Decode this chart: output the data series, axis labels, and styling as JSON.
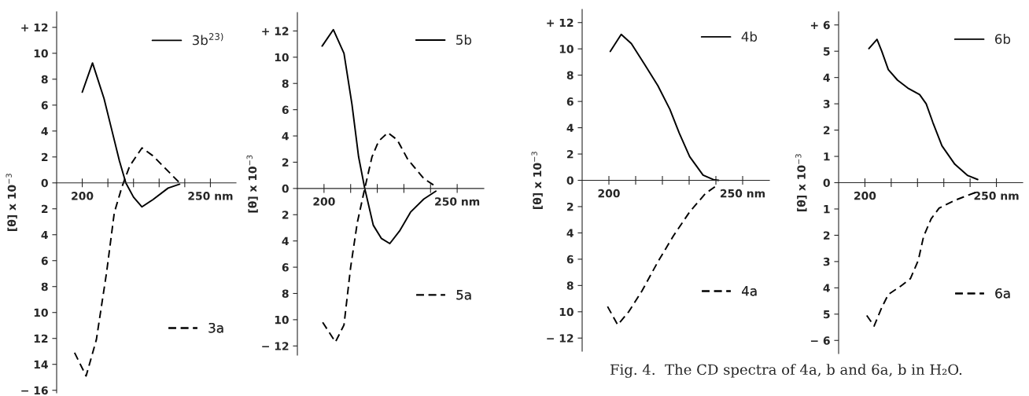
{
  "chart_data": [
    {
      "type": "line",
      "ylabel": "[θ] x 10$^{−3}$",
      "legend": "right",
      "grid": false,
      "xlim": [
        190,
        260
      ],
      "xticks": [
        200,
        {
          "value": 210,
          "label": null
        },
        {
          "value": 220,
          "label": null
        },
        {
          "value": 230,
          "label": null
        },
        {
          "value": 240,
          "label": null
        },
        {
          "value": 250,
          "label": "250 nm"
        }
      ],
      "ylim": [
        -16.2,
        13.2
      ],
      "yticks": [
        {
          "value": 12,
          "label": "+ 12"
        },
        10,
        8,
        6,
        4,
        2,
        0,
        {
          "value": -2,
          "label": "2"
        },
        {
          "value": -4,
          "label": "4"
        },
        {
          "value": -6,
          "label": "6"
        },
        {
          "value": -8,
          "label": "8"
        },
        {
          "value": -10,
          "label": "10"
        },
        {
          "value": -12,
          "label": "12"
        },
        {
          "value": -14,
          "label": "14"
        },
        {
          "value": -16,
          "label": "− 16"
        }
      ],
      "series": [
        {
          "name": "3b$^{23)}$",
          "color": "#000000",
          "line_style": "solid",
          "x": [
            200,
            204,
            208.5,
            211.5,
            214.5,
            217,
            220,
            223.3,
            227.5,
            233.5,
            238
          ],
          "values": [
            7.0,
            9.25,
            6.5,
            4.1,
            1.7,
            0,
            -1.1,
            -1.85,
            -1.3,
            -0.4,
            -0.1
          ]
        },
        {
          "name": "3a",
          "color": "#000000",
          "line_style": "dashed",
          "x": [
            197,
            201.5,
            205.5,
            209.5,
            212.5,
            215.5,
            218.5,
            223.3,
            227.5,
            233.5,
            238
          ],
          "values": [
            -13.1,
            -14.9,
            -12.1,
            -6.9,
            -2.3,
            -0.3,
            1.3,
            2.7,
            2.1,
            0.9,
            0
          ]
        }
      ]
    },
    {
      "type": "line",
      "ylabel": "[θ] x 10$^{−3}$",
      "legend": "right",
      "grid": false,
      "xlim": [
        190,
        260
      ],
      "xticks": [
        200,
        {
          "value": 210,
          "label": null
        },
        {
          "value": 220,
          "label": null
        },
        {
          "value": 230,
          "label": null
        },
        {
          "value": 240,
          "label": null
        },
        {
          "value": 250,
          "label": "250 nm"
        }
      ],
      "ylim": [
        -12.7,
        13.4
      ],
      "yticks": [
        {
          "value": 12,
          "label": "+ 12"
        },
        10,
        8,
        6,
        4,
        2,
        0,
        {
          "value": -2,
          "label": "2"
        },
        {
          "value": -4,
          "label": "4"
        },
        {
          "value": -6,
          "label": "6"
        },
        {
          "value": -8,
          "label": "8"
        },
        {
          "value": -10,
          "label": "10"
        },
        {
          "value": -12,
          "label": "− 12"
        }
      ],
      "series": [
        {
          "name": "5b",
          "color": "#000000",
          "line_style": "solid",
          "x": [
            199.3,
            203.5,
            207.5,
            210.5,
            213,
            215.3,
            218.5,
            221.5,
            224.7,
            228.5,
            232.5,
            237.5,
            242
          ],
          "values": [
            10.85,
            12.1,
            10.3,
            6.4,
            2.4,
            0,
            -2.8,
            -3.8,
            -4.2,
            -3.2,
            -1.8,
            -0.8,
            -0.2
          ]
        },
        {
          "name": "5a",
          "color": "#000000",
          "line_style": "dashed",
          "x": [
            199.5,
            204.3,
            207.5,
            210,
            212.5,
            215.3,
            218,
            220.5,
            224,
            227.5,
            231.5,
            237.5,
            242.3
          ],
          "values": [
            -10.2,
            -11.7,
            -10.4,
            -6.0,
            -2.6,
            0,
            2.4,
            3.6,
            4.25,
            3.7,
            2.2,
            0.75,
            0.1
          ]
        }
      ]
    },
    {
      "type": "line",
      "ylabel": "[θ] x 10$^{−3}$",
      "legend": "right",
      "grid": false,
      "annotations": [
        "Fig. 4.  The CD spectra of 4a, b and 6a, b in H₂O."
      ],
      "xlim": [
        190,
        260
      ],
      "xticks": [
        200,
        {
          "value": 210,
          "label": null
        },
        {
          "value": 220,
          "label": null
        },
        {
          "value": 230,
          "label": null
        },
        {
          "value": 240,
          "label": null
        },
        {
          "value": 250,
          "label": "250 nm"
        }
      ],
      "ylim": [
        -13,
        13
      ],
      "yticks": [
        {
          "value": 12,
          "label": "+ 12"
        },
        10,
        8,
        6,
        4,
        2,
        0,
        {
          "value": -2,
          "label": "2"
        },
        {
          "value": -4,
          "label": "4"
        },
        {
          "value": -6,
          "label": "6"
        },
        {
          "value": -8,
          "label": "8"
        },
        {
          "value": -10,
          "label": "10"
        },
        {
          "value": -12,
          "label": "− 12"
        }
      ],
      "series": [
        {
          "name": "4b",
          "color": "#000000",
          "line_style": "solid",
          "x": [
            200.5,
            204.6,
            208.4,
            213.4,
            218.3,
            222.8,
            226.3,
            230.2,
            235.2,
            239.1,
            241
          ],
          "values": [
            9.8,
            11.1,
            10.4,
            8.8,
            7.2,
            5.4,
            3.6,
            1.8,
            0.4,
            0.05,
            0
          ]
        },
        {
          "name": "4a",
          "color": "#000000",
          "line_style": "dashed",
          "x": [
            199.5,
            203.3,
            207.4,
            212.4,
            218.3,
            224.2,
            230.2,
            236.1,
            241
          ],
          "values": [
            -9.6,
            -11.0,
            -10.0,
            -8.4,
            -6.2,
            -4.2,
            -2.4,
            -1.0,
            -0.3
          ]
        }
      ]
    },
    {
      "type": "line",
      "ylabel": "[θ] x 10$^{−3}$",
      "legend": "right",
      "grid": false,
      "xlim": [
        190,
        260
      ],
      "xticks": [
        200,
        {
          "value": 210,
          "label": null
        },
        {
          "value": 220,
          "label": null
        },
        {
          "value": 230,
          "label": null
        },
        {
          "value": 240,
          "label": null
        },
        {
          "value": 250,
          "label": "250 nm"
        }
      ],
      "ylim": [
        -6.5,
        6.5
      ],
      "yticks": [
        {
          "value": 6,
          "label": "+ 6"
        },
        5,
        4,
        3,
        2,
        1,
        0,
        {
          "value": -1,
          "label": "1"
        },
        {
          "value": -2,
          "label": "2"
        },
        {
          "value": -3,
          "label": "3"
        },
        {
          "value": -4,
          "label": "4"
        },
        {
          "value": -5,
          "label": "5"
        },
        {
          "value": -6,
          "label": "− 6"
        }
      ],
      "series": [
        {
          "name": "6b",
          "color": "#000000",
          "line_style": "solid",
          "x": [
            201.5,
            204.6,
            206.4,
            208.9,
            212.4,
            216.3,
            220.8,
            223.3,
            225.8,
            229.3,
            234.2,
            239.1,
            242.9
          ],
          "values": [
            5.1,
            5.45,
            5.0,
            4.3,
            3.9,
            3.6,
            3.35,
            3.0,
            2.3,
            1.4,
            0.7,
            0.27,
            0.12
          ]
        },
        {
          "name": "6a",
          "color": "#000000",
          "line_style": "dashed",
          "x": [
            200.7,
            203.5,
            206.4,
            208.9,
            213.4,
            217.3,
            220.3,
            222.3,
            225.2,
            228.2,
            234.2,
            242.1
          ],
          "values": [
            -5.05,
            -5.45,
            -4.75,
            -4.25,
            -3.95,
            -3.65,
            -2.95,
            -2.05,
            -1.37,
            -0.97,
            -0.67,
            -0.37
          ]
        }
      ]
    }
  ]
}
